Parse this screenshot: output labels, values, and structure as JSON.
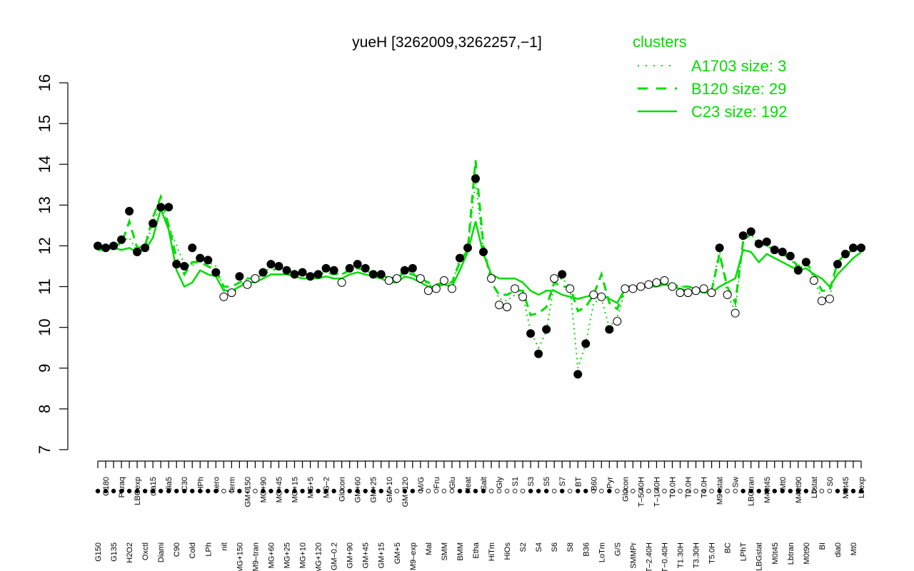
{
  "chart_data": {
    "type": "line",
    "title": "yueH [3262009,3262257,−1]",
    "ylim": [
      7,
      16
    ],
    "yticks": [
      7,
      8,
      9,
      10,
      11,
      12,
      13,
      14,
      15,
      16
    ],
    "xlabel": "",
    "ylabel": "",
    "legend": {
      "title": "clusters",
      "placement": "top-right",
      "color": "#00dd00",
      "entries": [
        {
          "label": "A1703 size: 3",
          "style": "dotted"
        },
        {
          "label": "B120 size: 29",
          "style": "dashed"
        },
        {
          "label": "C23 size: 192",
          "style": "solid"
        }
      ]
    },
    "line_color": "#00dd00",
    "x_tick_labels": [
      "G150",
      "G180",
      "G135",
      "Paraq",
      "H2O2",
      "LBGexp",
      "Oxctl",
      "dia15",
      "Diami",
      "dia5",
      "C90",
      "C30",
      "Cold",
      "HPh",
      "LPh",
      "aero",
      "nit",
      "ferm",
      "MG+150",
      "GM+150",
      "M9–tran",
      "MG+90",
      "MG+60",
      "MG+45",
      "MG+25",
      "MG+15",
      "MG+10",
      "MG+5",
      "MG+120",
      "MG–2",
      "GM–0.2",
      "Glucon",
      "GM+90",
      "GM+60",
      "GM+45",
      "GM+25",
      "GM+15",
      "GM+10",
      "GM+5",
      "GM+120",
      "M9–exp",
      "M/G",
      "Mal",
      "Fru",
      "SMM",
      "Glu",
      "BMM",
      "Heat",
      "Etha",
      "Salt",
      "HiTm",
      "Gly",
      "HiOs",
      "S1",
      "S2",
      "S3",
      "S4",
      "S5",
      "S6",
      "S7",
      "S8",
      "BT",
      "B36",
      "B60",
      "LoTm",
      "Pyr",
      "G/S",
      "Glucon",
      "SMMPr",
      "T–5.40H",
      "T–2.40H",
      "T–1.40H",
      "T−0.40H",
      "T0.0H",
      "T1.30H",
      "T2.0H",
      "T3.30H",
      "T4.0H",
      "T5.0H",
      "M9–stat",
      "BC",
      "Sw",
      "LPhT",
      "LBGtran",
      "LBGstat",
      "M40t45",
      "M0t45",
      "Mt0",
      "Lbtran",
      "M40t90",
      "M0t90",
      "Lbstat",
      "BI",
      "S0",
      "dia0",
      "M0t45",
      "Mt0",
      "Lbexp"
    ],
    "series": [
      {
        "values": [
          12.0,
          11.95,
          12.0,
          12.1,
          12.2,
          11.85,
          11.9,
          12.6,
          12.95,
          12.5,
          12.0,
          11.55,
          11.5,
          11.75,
          11.6,
          11.5,
          10.95,
          10.8,
          11.0,
          11.2,
          11.2,
          11.3,
          11.5,
          11.55,
          11.45,
          11.4,
          11.3,
          11.3,
          11.35,
          11.4,
          11.35,
          11.3,
          11.45,
          11.5,
          11.4,
          11.3,
          11.3,
          11.2,
          11.25,
          11.4,
          11.35,
          11.2,
          11.05,
          11.0,
          11.1,
          11.05,
          11.7,
          11.9,
          13.6,
          11.9,
          11.2,
          10.7,
          10.65,
          10.8,
          10.8,
          9.9,
          9.5,
          9.9,
          11.1,
          11.2,
          11.0,
          9.0,
          9.6,
          10.6,
          10.7,
          10.0,
          10.25,
          10.9,
          11.0,
          11.0,
          11.0,
          11.05,
          11.1,
          11.05,
          11.0,
          11.0,
          10.95,
          10.9,
          10.9,
          11.9,
          10.8,
          10.4,
          12.1,
          12.3,
          12.0,
          12.0,
          11.9,
          11.8,
          11.7,
          11.4,
          11.6,
          11.2,
          10.7,
          10.75,
          11.6,
          11.8,
          11.9,
          12.0
        ]
      },
      {
        "values": [
          11.9,
          11.95,
          12.0,
          12.05,
          12.6,
          11.95,
          12.0,
          12.7,
          13.2,
          12.5,
          11.7,
          11.3,
          11.6,
          11.6,
          11.5,
          11.4,
          11.0,
          11.0,
          11.1,
          11.2,
          11.2,
          11.3,
          11.4,
          11.45,
          11.4,
          11.35,
          11.3,
          11.3,
          11.3,
          11.35,
          11.3,
          11.3,
          11.4,
          11.45,
          11.4,
          11.35,
          11.3,
          11.2,
          11.2,
          11.35,
          11.3,
          11.2,
          11.1,
          11.05,
          11.1,
          11.1,
          11.6,
          11.9,
          14.1,
          12.0,
          11.1,
          10.8,
          10.8,
          10.9,
          10.9,
          10.3,
          10.35,
          10.5,
          11.1,
          11.0,
          11.0,
          10.4,
          10.5,
          10.8,
          11.3,
          10.6,
          10.45,
          11.0,
          11.0,
          11.0,
          11.0,
          11.05,
          11.1,
          11.05,
          11.0,
          11.0,
          10.95,
          10.9,
          10.9,
          11.8,
          11.0,
          10.6,
          12.1,
          12.3,
          12.1,
          12.0,
          11.9,
          11.8,
          11.7,
          11.5,
          11.6,
          11.3,
          10.9,
          10.9,
          11.6,
          11.8,
          11.9,
          12.0
        ]
      },
      {
        "values": [
          11.9,
          11.9,
          11.95,
          11.9,
          11.95,
          11.85,
          11.9,
          12.2,
          12.9,
          12.4,
          11.4,
          11.0,
          11.1,
          11.4,
          11.3,
          11.25,
          10.9,
          10.9,
          11.0,
          11.1,
          11.1,
          11.2,
          11.3,
          11.3,
          11.3,
          11.25,
          11.2,
          11.2,
          11.2,
          11.25,
          11.2,
          11.2,
          11.3,
          11.35,
          11.3,
          11.25,
          11.2,
          11.1,
          11.1,
          11.25,
          11.2,
          11.1,
          11.0,
          11.0,
          11.05,
          11.0,
          11.4,
          11.85,
          12.6,
          11.8,
          11.3,
          11.2,
          11.2,
          11.2,
          11.1,
          10.9,
          10.8,
          10.9,
          10.9,
          10.8,
          10.75,
          10.7,
          10.75,
          10.8,
          10.8,
          10.7,
          10.6,
          10.95,
          11.0,
          11.0,
          11.0,
          11.0,
          11.05,
          11.0,
          10.95,
          10.9,
          10.9,
          10.85,
          10.85,
          11.0,
          11.1,
          11.2,
          11.9,
          11.85,
          11.6,
          11.8,
          11.7,
          11.6,
          11.5,
          11.4,
          11.45,
          11.3,
          11.2,
          11.0,
          11.3,
          11.5,
          11.7,
          11.85
        ]
      }
    ],
    "points": [
      12.0,
      11.95,
      12.0,
      12.15,
      12.85,
      11.85,
      11.95,
      12.55,
      12.95,
      12.95,
      11.55,
      11.5,
      11.95,
      11.7,
      11.65,
      11.35,
      10.75,
      10.85,
      11.25,
      11.05,
      11.2,
      11.35,
      11.55,
      11.5,
      11.4,
      11.3,
      11.35,
      11.25,
      11.3,
      11.45,
      11.4,
      11.1,
      11.45,
      11.55,
      11.45,
      11.3,
      11.3,
      11.15,
      11.2,
      11.4,
      11.45,
      11.2,
      10.9,
      10.95,
      11.15,
      10.95,
      11.7,
      11.95,
      13.65,
      11.85,
      11.2,
      10.55,
      10.5,
      10.95,
      10.75,
      9.85,
      9.35,
      9.95,
      11.2,
      11.3,
      10.95,
      8.85,
      9.6,
      10.8,
      10.75,
      9.95,
      10.15,
      10.95,
      10.95,
      11.0,
      11.05,
      11.1,
      11.15,
      11.0,
      10.85,
      10.85,
      10.9,
      10.95,
      10.85,
      11.95,
      10.8,
      10.35,
      12.25,
      12.35,
      12.05,
      12.1,
      11.9,
      11.85,
      11.75,
      11.4,
      11.6,
      11.15,
      10.65,
      10.7,
      11.55,
      11.8,
      11.95,
      11.95
    ]
  }
}
